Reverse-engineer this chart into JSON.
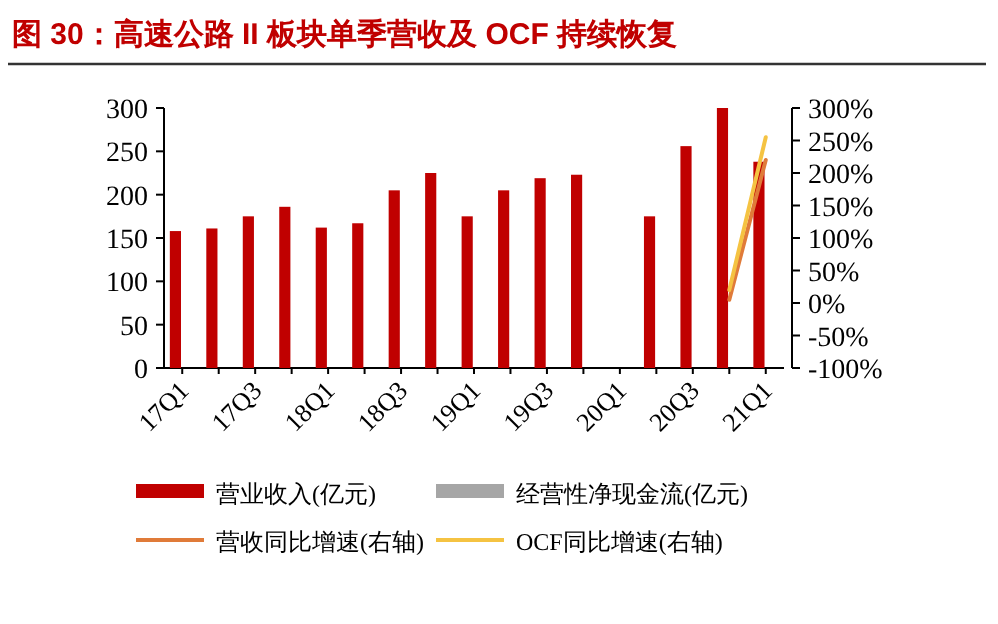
{
  "chart_data": {
    "type": "bar",
    "title": "图 30：高速公路 II 板块单季营收及 OCF 持续恢复",
    "categories": [
      "17Q1",
      null,
      "17Q3",
      null,
      "18Q1",
      null,
      "18Q3",
      null,
      "19Q1",
      null,
      "19Q3",
      null,
      "20Q1",
      null,
      "20Q3",
      null,
      "21Q1"
    ],
    "series": [
      {
        "name": "营业收入(亿元)",
        "color": "#c00000",
        "values": [
          158,
          161,
          175,
          186,
          162,
          167,
          205,
          225,
          175,
          205,
          219,
          223,
          null,
          175,
          256,
          300,
          238
        ]
      },
      {
        "name": "经营性净现金流(亿元)",
        "color": "#a6a6a6",
        "values": [
          null,
          null,
          null,
          null,
          null,
          null,
          null,
          null,
          null,
          null,
          null,
          null,
          null,
          null,
          null,
          null,
          null
        ]
      },
      {
        "name": "营收同比增速(右轴)",
        "type": "line",
        "axis": "y2",
        "color": "#e07b39",
        "values": [
          null,
          null,
          null,
          null,
          null,
          null,
          null,
          null,
          null,
          null,
          null,
          null,
          null,
          null,
          null,
          5,
          220
        ]
      },
      {
        "name": "OCF同比增速(右轴)",
        "type": "line",
        "axis": "y2",
        "color": "#f5c342",
        "values": [
          null,
          null,
          null,
          null,
          null,
          null,
          null,
          null,
          null,
          null,
          null,
          null,
          null,
          null,
          null,
          20,
          255
        ]
      }
    ],
    "ylim": [
      0,
      300
    ],
    "yticks": [
      0,
      50,
      100,
      150,
      200,
      250,
      300
    ],
    "y2lim": [
      -100,
      300
    ],
    "y2ticks": [
      {
        "value": -100,
        "label": "-100%"
      },
      {
        "value": -50,
        "label": "-50%"
      },
      {
        "value": 0,
        "label": "0%"
      },
      {
        "value": 50,
        "label": "50%"
      },
      {
        "value": 100,
        "label": "100%"
      },
      {
        "value": 150,
        "label": "150%"
      },
      {
        "value": 200,
        "label": "200%"
      },
      {
        "value": 250,
        "label": "250%"
      },
      {
        "value": 300,
        "label": "300%"
      }
    ],
    "legend": "bottom",
    "grid": false
  }
}
